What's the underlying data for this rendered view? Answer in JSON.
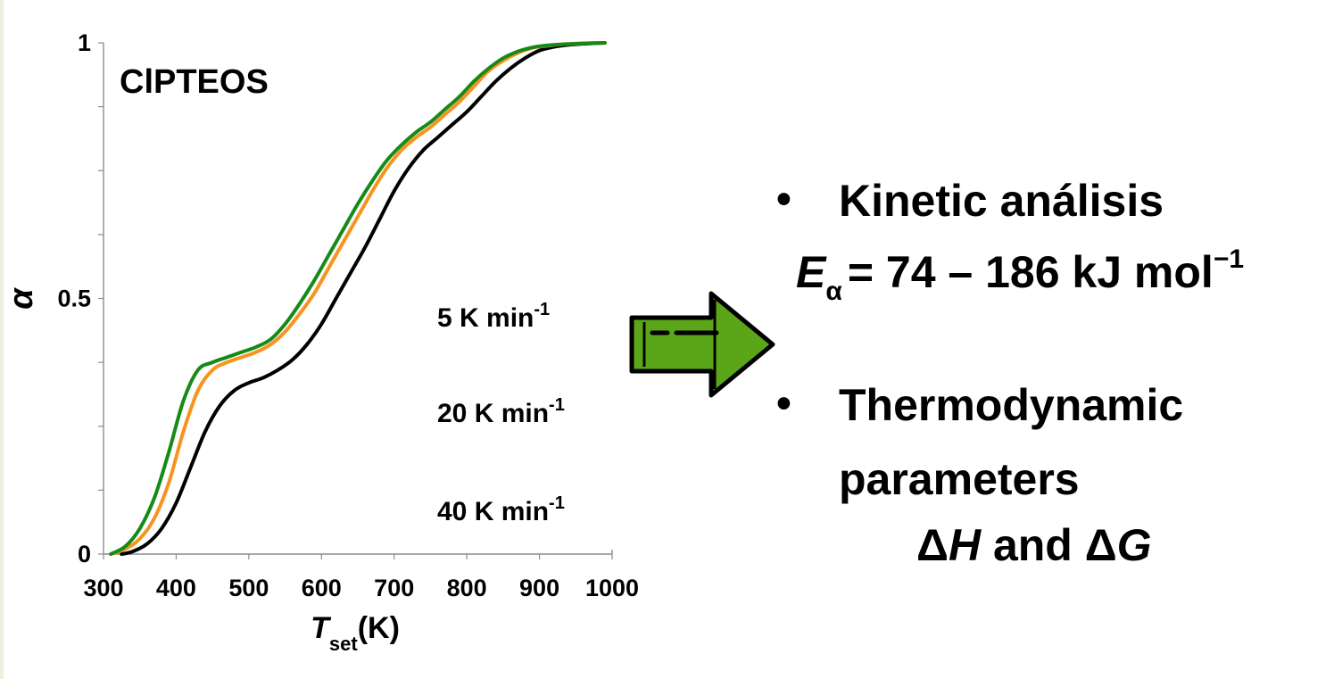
{
  "chart_data": {
    "type": "line",
    "title": "ClPTEOS",
    "xlabel": "T",
    "xlabel_sub": "set",
    "xlabel_unit": "(K)",
    "ylabel": "α",
    "xlim": [
      300,
      1000
    ],
    "ylim": [
      0,
      1
    ],
    "x_ticks": [
      "300",
      "400",
      "500",
      "600",
      "700",
      "800",
      "900",
      "1000"
    ],
    "y_ticks": [
      "0",
      "0.5",
      "1"
    ],
    "grid": false,
    "legend_placement": "right",
    "series": [
      {
        "name": "5 K min",
        "name_sup": "-1",
        "color": "#000000",
        "x": [
          325,
          340,
          360,
          380,
          400,
          420,
          440,
          460,
          480,
          500,
          520,
          540,
          560,
          580,
          600,
          620,
          640,
          660,
          680,
          700,
          720,
          740,
          760,
          780,
          800,
          820,
          840,
          860,
          880,
          900,
          920,
          940,
          960,
          990
        ],
        "y": [
          0.0,
          0.005,
          0.02,
          0.05,
          0.1,
          0.17,
          0.24,
          0.29,
          0.32,
          0.335,
          0.345,
          0.36,
          0.38,
          0.41,
          0.45,
          0.5,
          0.55,
          0.6,
          0.655,
          0.71,
          0.755,
          0.79,
          0.815,
          0.84,
          0.865,
          0.895,
          0.925,
          0.95,
          0.97,
          0.985,
          0.992,
          0.996,
          0.998,
          1.0
        ]
      },
      {
        "name": "20 K min",
        "name_sup": "-1",
        "color": "#f7931e",
        "x": [
          310,
          330,
          350,
          370,
          390,
          410,
          430,
          450,
          470,
          490,
          510,
          530,
          550,
          570,
          590,
          610,
          630,
          650,
          670,
          690,
          710,
          730,
          750,
          770,
          790,
          810,
          830,
          850,
          870,
          890,
          910,
          930,
          960,
          990
        ],
        "y": [
          0.0,
          0.01,
          0.03,
          0.07,
          0.14,
          0.24,
          0.32,
          0.36,
          0.375,
          0.385,
          0.395,
          0.41,
          0.435,
          0.47,
          0.51,
          0.56,
          0.61,
          0.66,
          0.71,
          0.755,
          0.79,
          0.815,
          0.835,
          0.86,
          0.885,
          0.915,
          0.945,
          0.965,
          0.98,
          0.99,
          0.994,
          0.997,
          0.999,
          1.0
        ]
      },
      {
        "name": "40 K min",
        "name_sup": "-1",
        "color": "#168a16",
        "x": [
          310,
          330,
          350,
          370,
          390,
          410,
          430,
          450,
          470,
          490,
          510,
          530,
          550,
          570,
          590,
          610,
          630,
          650,
          670,
          690,
          710,
          730,
          750,
          770,
          790,
          810,
          830,
          850,
          870,
          890,
          910,
          930,
          960,
          990
        ],
        "y": [
          0.0,
          0.015,
          0.05,
          0.11,
          0.2,
          0.3,
          0.36,
          0.375,
          0.385,
          0.395,
          0.405,
          0.42,
          0.45,
          0.49,
          0.535,
          0.585,
          0.635,
          0.685,
          0.73,
          0.77,
          0.8,
          0.825,
          0.845,
          0.87,
          0.895,
          0.925,
          0.95,
          0.97,
          0.983,
          0.991,
          0.995,
          0.997,
          0.999,
          1.0
        ]
      }
    ]
  },
  "info": {
    "bullet_symbol": "•",
    "kinetic_title": "Kinetic análisis",
    "ea_symbol": "E",
    "ea_subscript": "α",
    "ea_value": "= 74 – 186 kJ mol",
    "ea_sup": "−1",
    "thermo_title": "Thermodynamic",
    "thermo_title2": "parameters",
    "delta1": "Δ",
    "h_symbol": "H",
    "and_text": " and ",
    "delta2": "Δ",
    "g_symbol": "G"
  },
  "arrow": {
    "icon": "right-arrow-icon",
    "color": "#5aa618"
  }
}
